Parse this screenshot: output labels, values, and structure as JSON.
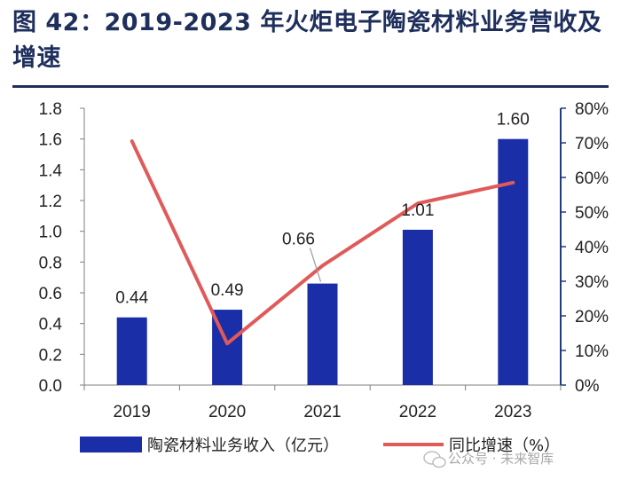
{
  "figure": {
    "title": "图 42：2019-2023 年火炬电子陶瓷材料业务营收及增速"
  },
  "chart_data": {
    "type": "bar+line",
    "categories": [
      "2019",
      "2020",
      "2021",
      "2022",
      "2023"
    ],
    "series": [
      {
        "name": "陶瓷材料业务收入（亿元）",
        "type": "bar",
        "axis": "left",
        "values": [
          0.44,
          0.49,
          0.66,
          1.01,
          1.6
        ],
        "labels": [
          "0.44",
          "0.49",
          "0.66",
          "1.01",
          "1.60"
        ]
      },
      {
        "name": "同比增速（%）",
        "type": "line",
        "axis": "right",
        "values": [
          70.5,
          12.0,
          34.5,
          52.5,
          58.5
        ]
      }
    ],
    "y_left": {
      "min": 0,
      "max": 1.8,
      "step": 0.2,
      "ticks": [
        "0.0",
        "0.2",
        "0.4",
        "0.6",
        "0.8",
        "1.0",
        "1.2",
        "1.4",
        "1.6",
        "1.8"
      ]
    },
    "y_right": {
      "min": 0,
      "max": 80,
      "step": 10,
      "ticks": [
        "0%",
        "10%",
        "20%",
        "30%",
        "40%",
        "50%",
        "60%",
        "70%",
        "80%"
      ]
    },
    "legend_position": "bottom",
    "colors": {
      "bar": "#1a2ea8",
      "line": "#e05a5a",
      "axis_right": "#1f3d7a"
    }
  },
  "watermark": {
    "text": "公众号 · 未来智库",
    "icon": "wechat-icon"
  }
}
